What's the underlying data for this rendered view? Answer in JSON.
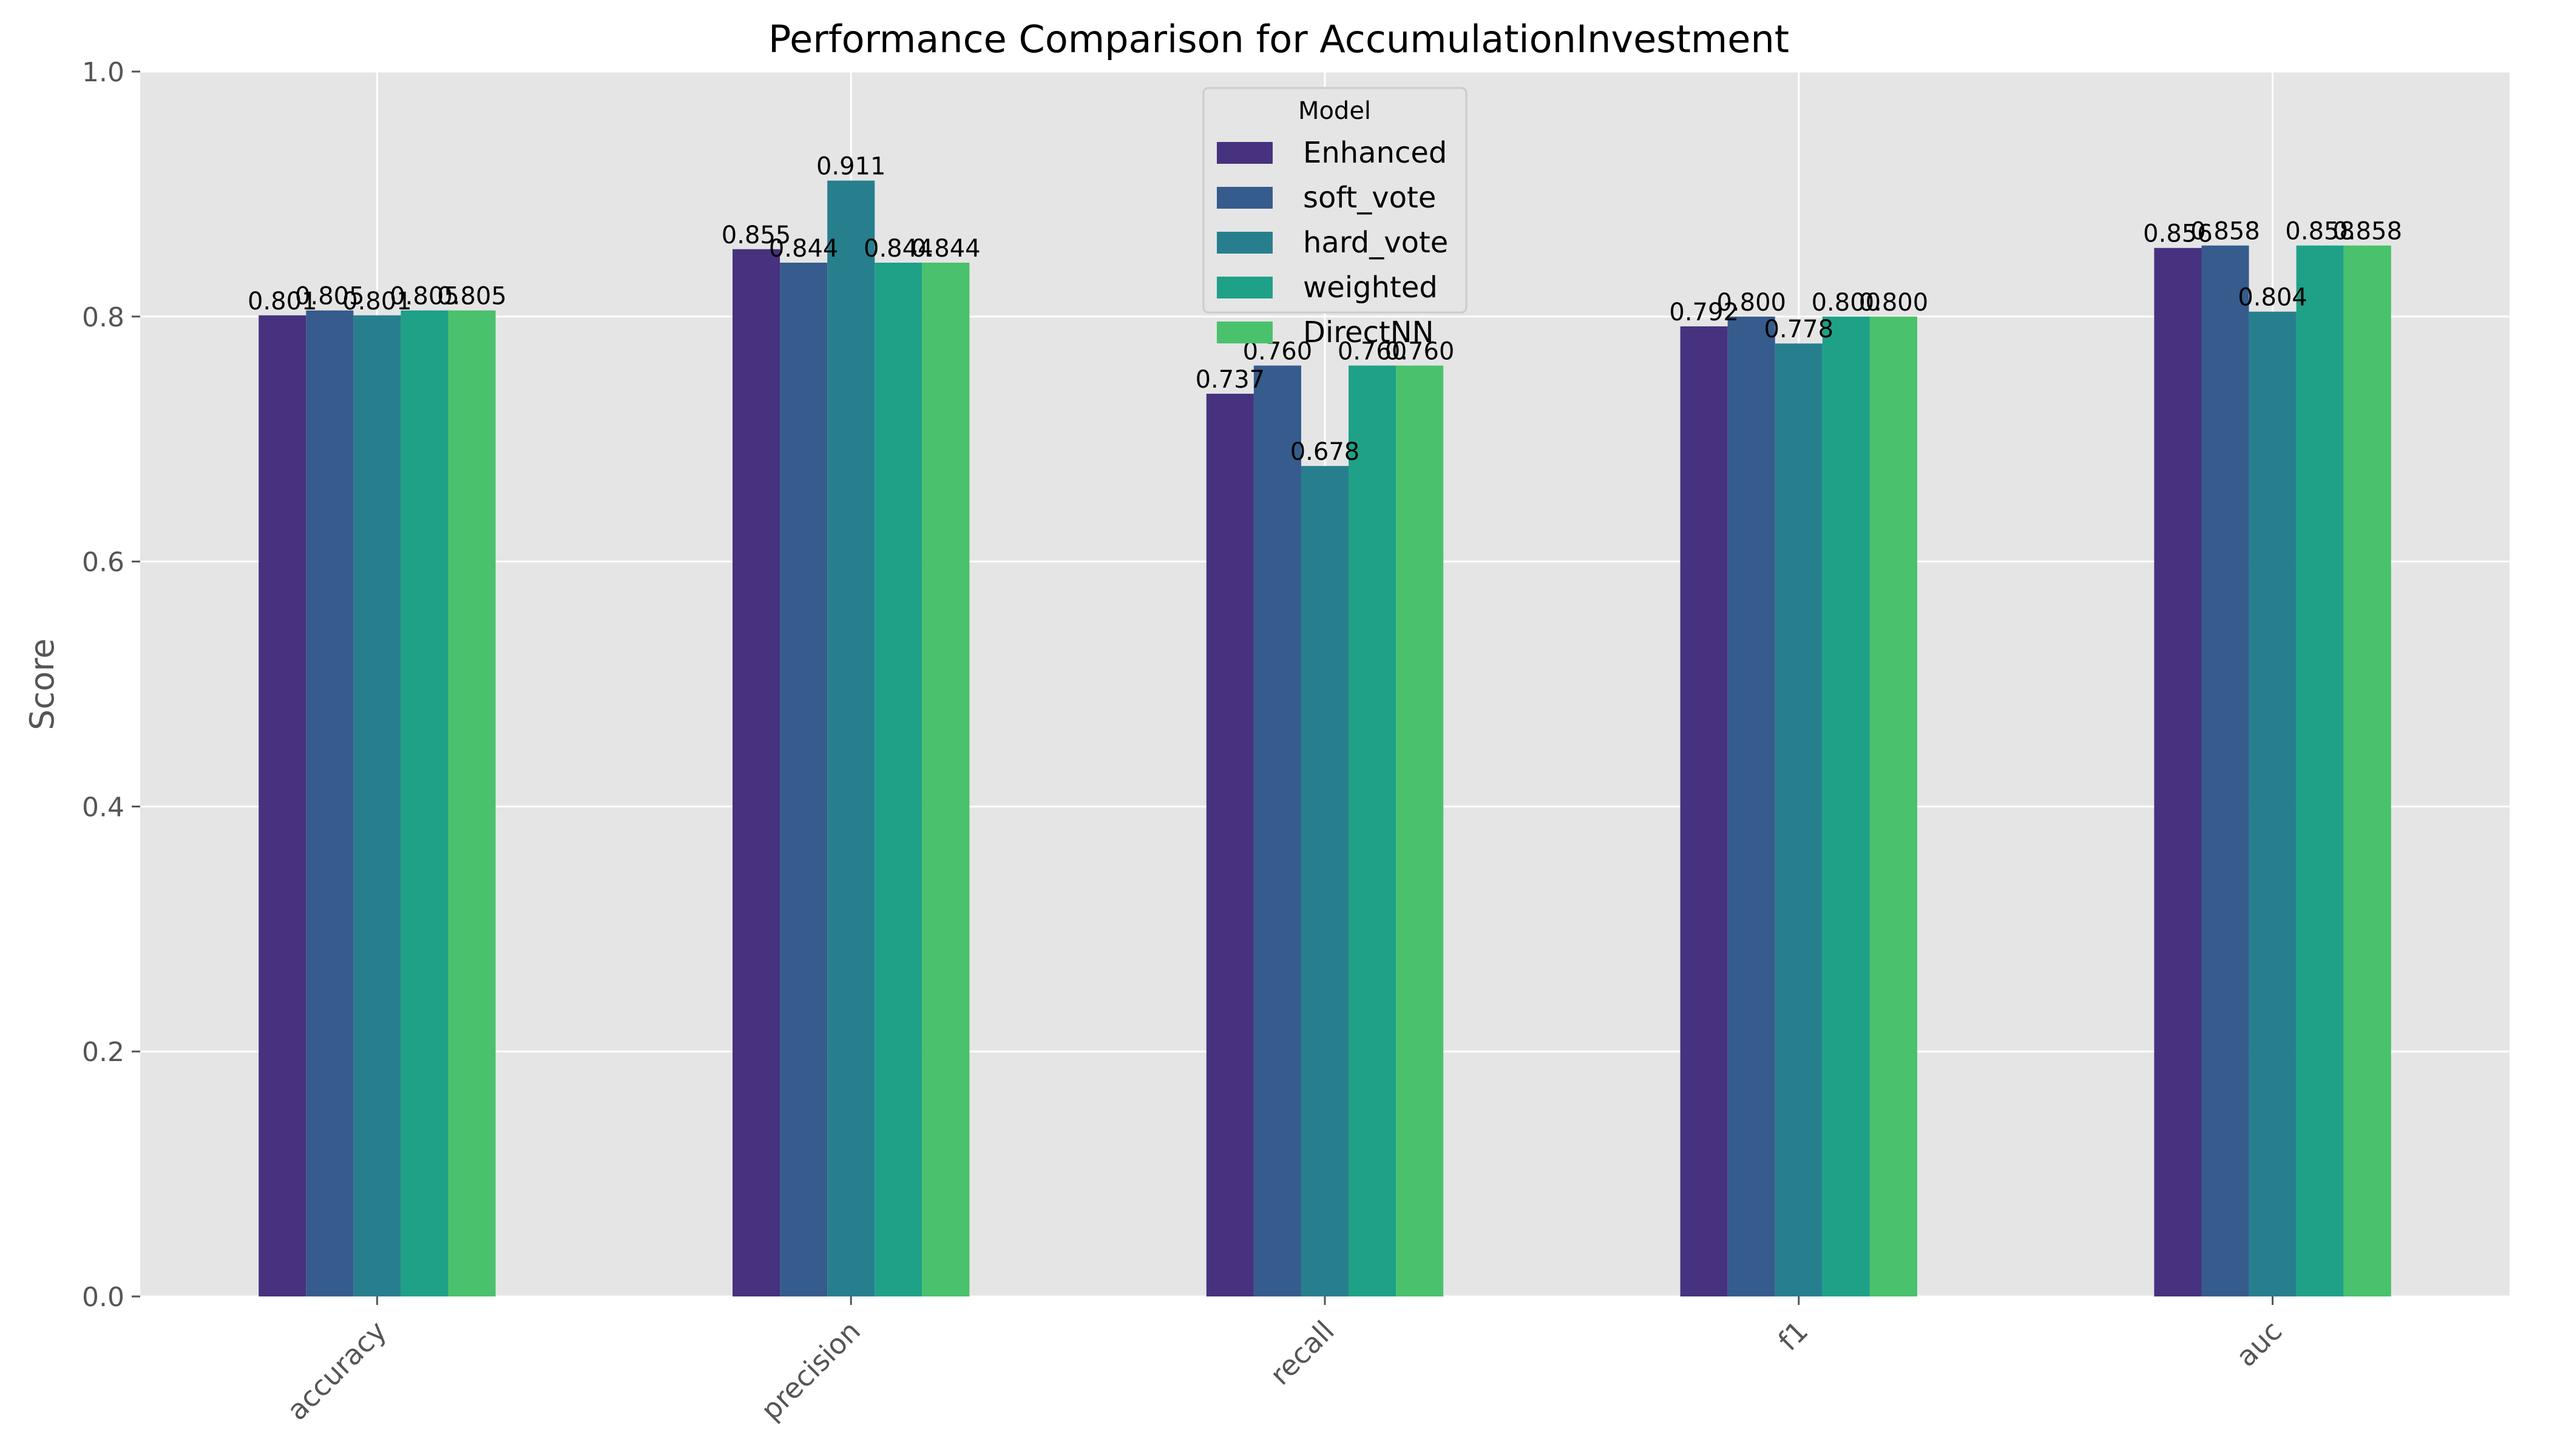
{
  "chart_data": {
    "type": "bar",
    "title": "Performance Comparison for AccumulationInvestment",
    "xlabel": "",
    "ylabel": "Score",
    "ylim": [
      0,
      1.0
    ],
    "yticks": [
      "0.0",
      "0.2",
      "0.4",
      "0.6",
      "0.8",
      "1.0"
    ],
    "categories": [
      "accuracy",
      "precision",
      "recall",
      "f1",
      "auc"
    ],
    "grid": true,
    "legend": {
      "title": "Model",
      "placement": "top-center"
    },
    "series": [
      {
        "name": "Enhanced",
        "color": "#46327e",
        "values": [
          0.801,
          0.855,
          0.737,
          0.792,
          0.856
        ],
        "labels": [
          "0.801",
          "0.855",
          "0.737",
          "0.792",
          "0.856"
        ]
      },
      {
        "name": "soft_vote",
        "color": "#365c8d",
        "values": [
          0.805,
          0.844,
          0.76,
          0.8,
          0.858
        ],
        "labels": [
          "0.805",
          "0.844",
          "0.760",
          "0.800",
          "0.858"
        ]
      },
      {
        "name": "hard_vote",
        "color": "#277f8e",
        "values": [
          0.801,
          0.911,
          0.678,
          0.778,
          0.804
        ],
        "labels": [
          "0.801",
          "0.911",
          "0.678",
          "0.778",
          "0.804"
        ]
      },
      {
        "name": "weighted",
        "color": "#1fa187",
        "values": [
          0.805,
          0.844,
          0.76,
          0.8,
          0.858
        ],
        "labels": [
          "0.805",
          "0.844",
          "0.760",
          "0.800",
          "0.858"
        ]
      },
      {
        "name": "DirectNN",
        "color": "#4ac16d",
        "values": [
          0.805,
          0.844,
          0.76,
          0.8,
          0.858
        ],
        "labels": [
          "0.805",
          "0.844",
          "0.760",
          "0.800",
          "0.858"
        ]
      }
    ]
  }
}
